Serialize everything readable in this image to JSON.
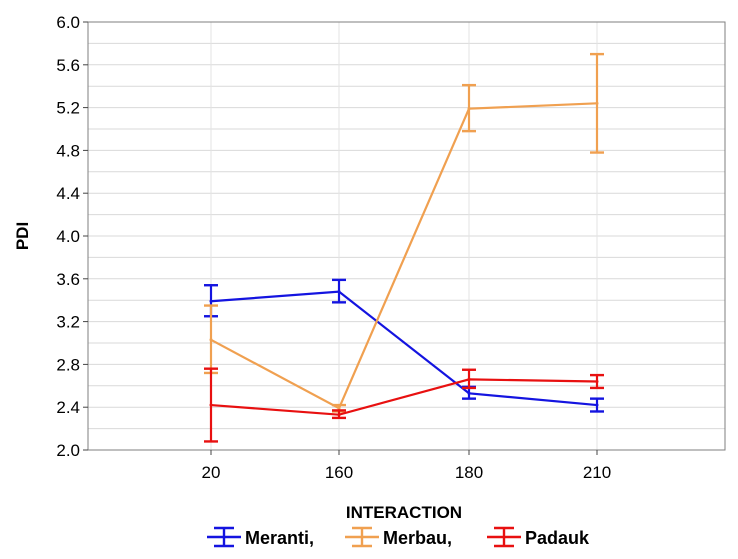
{
  "chart_data": {
    "type": "line",
    "xlabel": "INTERACTION",
    "ylabel": "PDI",
    "categories": [
      "20",
      "160",
      "180",
      "210"
    ],
    "ylim": [
      2.0,
      6.0
    ],
    "yticks": [
      "2.0",
      "2.4",
      "2.8",
      "3.2",
      "3.6",
      "4.0",
      "4.4",
      "4.8",
      "5.2",
      "5.6",
      "6.0"
    ],
    "grid": true,
    "error_bars": true,
    "legend_position": "bottom",
    "series": [
      {
        "name": "Meranti,",
        "color": "#1414e0",
        "values": [
          3.39,
          3.48,
          2.53,
          2.42
        ],
        "err_low": [
          3.25,
          3.38,
          2.48,
          2.36
        ],
        "err_high": [
          3.54,
          3.59,
          2.59,
          2.48
        ]
      },
      {
        "name": "Merbau,",
        "color": "#f0a050",
        "values": [
          3.03,
          2.39,
          5.19,
          5.24
        ],
        "err_low": [
          2.72,
          2.36,
          4.98,
          4.78
        ],
        "err_high": [
          3.35,
          2.42,
          5.41,
          5.7
        ]
      },
      {
        "name": "Padauk",
        "color": "#e81010",
        "values": [
          2.42,
          2.33,
          2.66,
          2.64
        ],
        "err_low": [
          2.08,
          2.3,
          2.58,
          2.58
        ],
        "err_high": [
          2.76,
          2.37,
          2.75,
          2.7
        ]
      }
    ]
  }
}
